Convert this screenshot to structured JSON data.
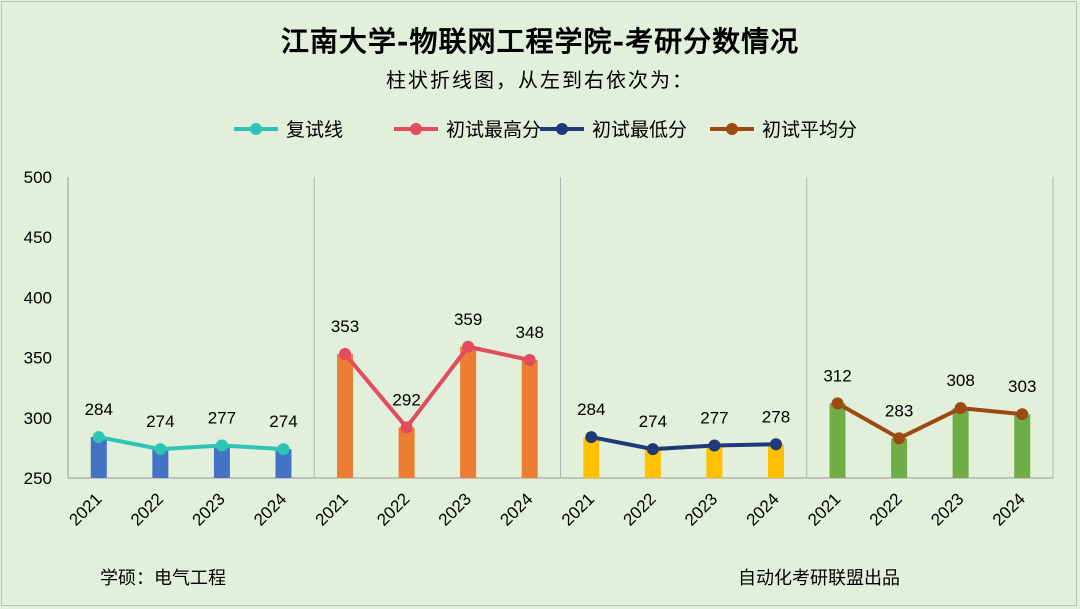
{
  "title": "江南大学-物联网工程学院-考研分数情况",
  "subtitle": "柱状折线图，从左到右依次为：",
  "footer": {
    "left": "学硕：电气工程",
    "right": "自动化考研联盟出品"
  },
  "chart_data": {
    "type": "bar",
    "categories": [
      "2021",
      "2022",
      "2023",
      "2024"
    ],
    "ylim": [
      250,
      500
    ],
    "yticks": [
      "250",
      "300",
      "350",
      "400",
      "450",
      "500"
    ],
    "grid": false,
    "legend_position": "top",
    "series": [
      {
        "name": "复试线",
        "values": [
          284,
          274,
          277,
          274
        ],
        "line_color": "#2ec4b6",
        "bar_color": "#4472c4"
      },
      {
        "name": "初试最高分",
        "values": [
          353,
          292,
          359,
          348
        ],
        "line_color": "#e24c5e",
        "bar_color": "#ed7d31"
      },
      {
        "name": "初试最低分",
        "values": [
          284,
          274,
          277,
          278
        ],
        "line_color": "#1f3a7a",
        "bar_color": "#ffc000"
      },
      {
        "name": "初试平均分",
        "values": [
          312,
          283,
          308,
          303
        ],
        "line_color": "#9c4a12",
        "bar_color": "#70ad47"
      }
    ]
  }
}
